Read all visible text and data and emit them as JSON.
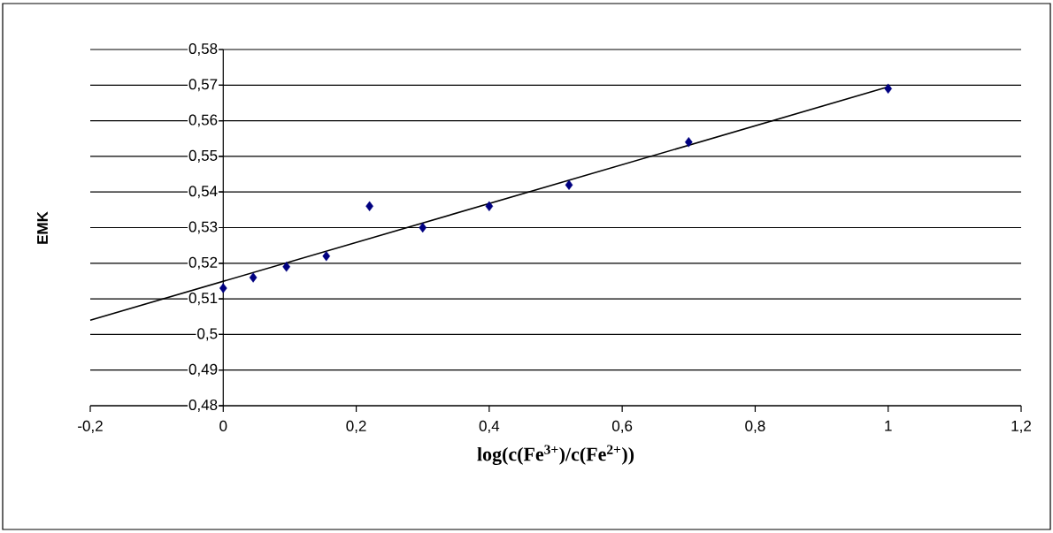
{
  "chart_data": {
    "type": "scatter",
    "xlabel": "log(c(Fe$^{3+}$)/c(Fe$^{2+}$))",
    "ylabel": "EMK",
    "series": [
      {
        "color": "#000080",
        "marker": "diamond",
        "x": [
          0,
          0.045,
          0.095,
          0.155,
          0.22,
          0.3,
          0.4,
          0.52,
          0.7,
          1
        ],
        "values": [
          0.513,
          0.516,
          0.519,
          0.522,
          0.536,
          0.53,
          0.536,
          0.542,
          0.554,
          0.569
        ]
      },
      {
        "type": "line",
        "color": "#000000",
        "marker": "none",
        "line_style": "solid",
        "x": [
          -0.2,
          1
        ],
        "values": [
          0.504,
          0.5695
        ]
      }
    ],
    "xlim": [
      -0.2,
      1.2
    ],
    "xticks": [
      {
        "value": -0.2,
        "label": "-0,2"
      },
      0,
      {
        "value": 0.2,
        "label": "0,2"
      },
      {
        "value": 0.4,
        "label": "0,4"
      },
      {
        "value": 0.6,
        "label": "0,6"
      },
      {
        "value": 0.8,
        "label": "0,8"
      },
      1,
      {
        "value": 1.2,
        "label": "1,2"
      }
    ],
    "ylim": [
      0.48,
      0.58
    ],
    "yticks": [
      {
        "value": 0.48,
        "label": "0,48"
      },
      {
        "value": 0.49,
        "label": "0,49"
      },
      {
        "value": 0.5,
        "label": "0,5"
      },
      {
        "value": 0.51,
        "label": "0,51"
      },
      {
        "value": 0.52,
        "label": "0,52"
      },
      {
        "value": 0.53,
        "label": "0,53"
      },
      {
        "value": 0.54,
        "label": "0,54"
      },
      {
        "value": 0.55,
        "label": "0,55"
      },
      {
        "value": 0.56,
        "label": "0,56"
      },
      {
        "value": 0.57,
        "label": "0,57"
      },
      {
        "value": 0.58,
        "label": "0,58"
      }
    ],
    "grid": "y"
  }
}
